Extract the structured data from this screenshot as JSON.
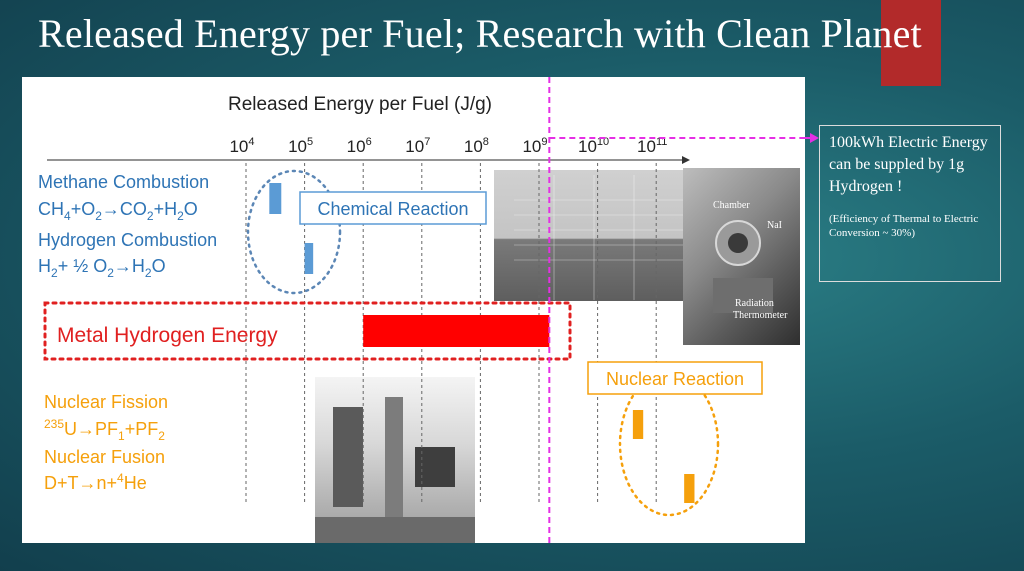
{
  "slide": {
    "title": "Released Energy per Fuel; Research with Clean Planet"
  },
  "callout": {
    "main": "100kWh Electric Energy can be suppled by 1g Hydrogen !",
    "note": "(Efficiency of Thermal to Electric Conversion ~ 30%)"
  },
  "chart_data": {
    "type": "bar",
    "title": "Released Energy per Fuel (J/g)",
    "x_scale": "log10",
    "x_ticks": [
      {
        "value": 10000,
        "base": "10",
        "exp": "4"
      },
      {
        "value": 100000,
        "base": "10",
        "exp": "5"
      },
      {
        "value": 1000000,
        "base": "10",
        "exp": "6"
      },
      {
        "value": 10000000,
        "base": "10",
        "exp": "7"
      },
      {
        "value": 100000000,
        "base": "10",
        "exp": "8"
      },
      {
        "value": 1000000000,
        "base": "10",
        "exp": "9"
      },
      {
        "value": 10000000000,
        "base": "10",
        "exp": "10"
      },
      {
        "value": 100000000000,
        "base": "10",
        "exp": "11"
      }
    ],
    "grid": true,
    "colors": {
      "chemical": "#5b9bd5",
      "metal_hydrogen": "#ff0000",
      "nuclear": "#f5a00c",
      "marker_line": "#e52fe5",
      "text_blue": "#2e74b5",
      "text_red": "#e02020",
      "text_orange": "#f5a00c"
    },
    "categories": [
      {
        "key": "methane",
        "label": "Methane Combustion",
        "formula": "CH4+O2→CO2+H2O",
        "x_min": 25000,
        "x_max": 40000
      },
      {
        "key": "hydrogen",
        "label": "Hydrogen Combustion",
        "formula": "H2+ ½ O2→H2O",
        "x_min": 100000,
        "x_max": 140000
      },
      {
        "key": "metal_hydrogen",
        "label": "Metal Hydrogen Energy",
        "x_min": 1000000,
        "x_max": 1500000000
      },
      {
        "key": "fission",
        "label": "Nuclear Fission",
        "formula": "235U→PF1+PF2",
        "x_min": 40000000000,
        "x_max": 60000000000
      },
      {
        "key": "fusion",
        "label": "Nuclear Fusion",
        "formula": "D+T→n+4He",
        "x_min": 300000000000,
        "x_max": 450000000000
      }
    ],
    "group_labels": {
      "chemical": "Chemical Reaction",
      "nuclear": "Nuclear Reaction"
    },
    "marker_value": 1500000000,
    "photo_labels": {
      "chamber": "Chamber",
      "nai": "NaI",
      "radiation": "Radiation",
      "thermometer": "Thermometer"
    }
  }
}
